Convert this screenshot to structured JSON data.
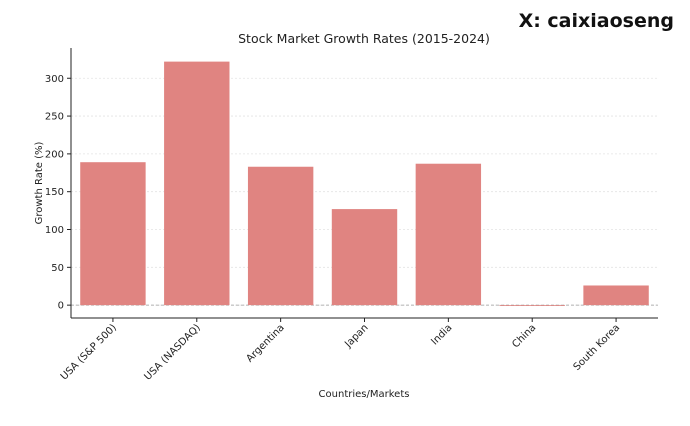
{
  "watermark": "X: caixiaoseng",
  "chart_data": {
    "type": "bar",
    "title": "Stock Market Growth Rates (2015-2024)",
    "xlabel": "Countries/Markets",
    "ylabel": "Growth Rate (%)",
    "categories": [
      "USA (S&P 500)",
      "USA (NASDAQ)",
      "Argentina",
      "Japan",
      "India",
      "China",
      "South Korea"
    ],
    "values": [
      189,
      322,
      183,
      127,
      187,
      -1,
      26
    ],
    "ylim": [
      -17,
      340
    ],
    "yticks": [
      0,
      50,
      100,
      150,
      200,
      250,
      300
    ],
    "grid": true,
    "bar_color": "#e08481",
    "zero_line": "dashed"
  }
}
